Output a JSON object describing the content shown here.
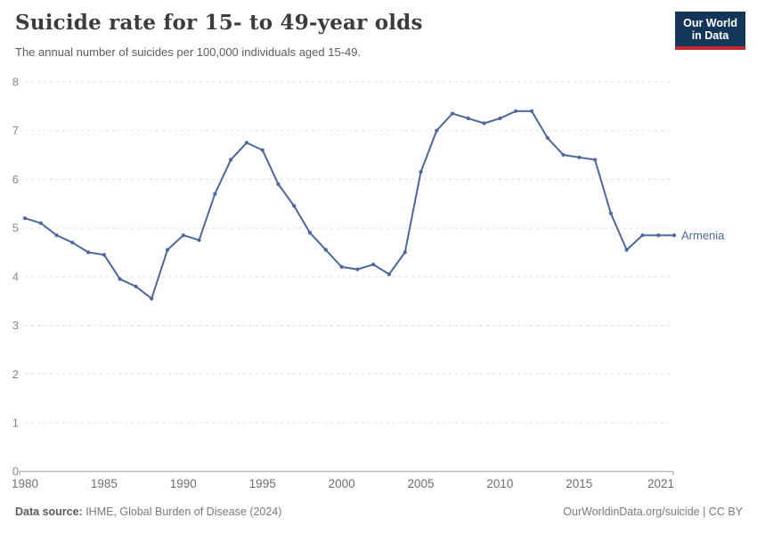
{
  "header": {
    "title": "Suicide rate for 15- to 49-year olds",
    "subtitle": "The annual number of suicides per 100,000 individuals aged 15-49.",
    "logo": {
      "line1": "Our World",
      "line2": "in Data",
      "bg_color": "#15365B",
      "accent_color": "#C5262B"
    }
  },
  "chart_data": {
    "type": "line",
    "title": "Suicide rate for 15- to 49-year olds",
    "subtitle": "The annual number of suicides per 100,000 individuals aged 15-49.",
    "xlim": [
      1980,
      2021
    ],
    "ylim": [
      0,
      8
    ],
    "grid": "horizontal-dashed",
    "legend_position": "end-of-line",
    "xticks": [
      "1980",
      "1985",
      "1990",
      "1995",
      "2000",
      "2005",
      "2010",
      "2015",
      "2021"
    ],
    "yticks": [
      "0",
      "1",
      "2",
      "3",
      "4",
      "5",
      "6",
      "7",
      "8"
    ],
    "x": [
      1980,
      1981,
      1982,
      1983,
      1984,
      1985,
      1986,
      1987,
      1988,
      1989,
      1990,
      1991,
      1992,
      1993,
      1994,
      1995,
      1996,
      1997,
      1998,
      1999,
      2000,
      2001,
      2002,
      2003,
      2004,
      2005,
      2006,
      2007,
      2008,
      2009,
      2010,
      2011,
      2012,
      2013,
      2014,
      2015,
      2016,
      2017,
      2018,
      2019,
      2020,
      2021
    ],
    "series": [
      {
        "name": "Armenia",
        "color": "#4D689D",
        "values": [
          5.2,
          5.1,
          4.85,
          4.7,
          4.5,
          4.45,
          3.95,
          3.8,
          3.55,
          4.55,
          4.85,
          4.75,
          5.7,
          6.4,
          6.75,
          6.6,
          5.9,
          5.45,
          4.9,
          4.55,
          4.2,
          4.15,
          4.25,
          4.05,
          4.5,
          6.15,
          7.0,
          7.35,
          7.25,
          7.15,
          7.25,
          7.4,
          7.4,
          6.85,
          6.5,
          6.45,
          6.4,
          5.3,
          4.55,
          4.85,
          4.85,
          4.85
        ]
      }
    ],
    "end_label": "Armenia",
    "colors": {
      "gridline": "#dcdcdc",
      "axis_line": "#9e9e9e",
      "y_tick_label": "#888888",
      "x_tick_label": "#6f6f6f"
    }
  },
  "footer": {
    "source_label": "Data source:",
    "source_text": " IHME, Global Burden of Disease (2024)",
    "credit": "OurWorldinData.org/suicide | CC BY"
  }
}
